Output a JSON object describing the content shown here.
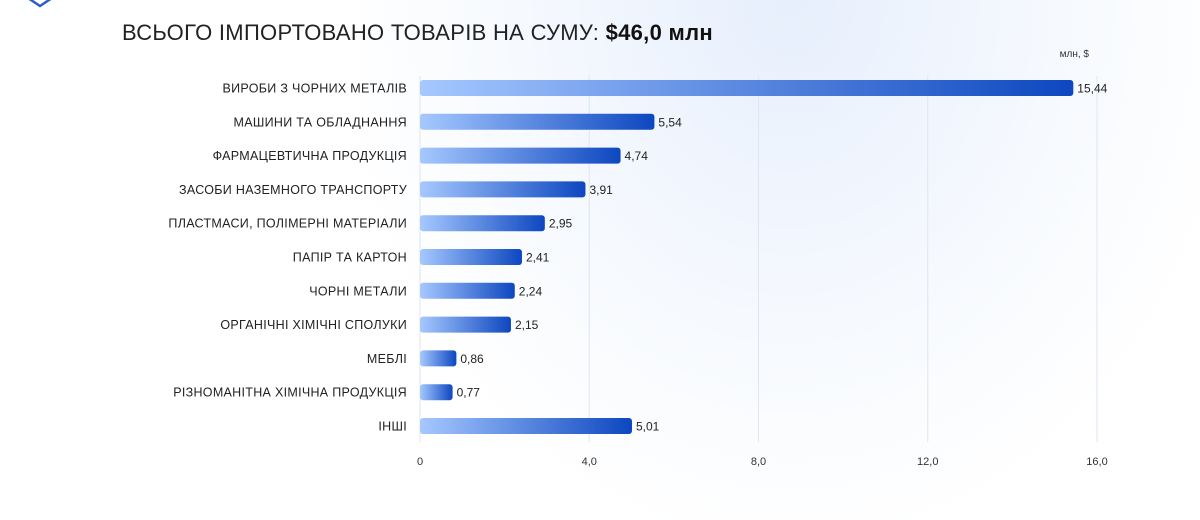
{
  "header": {
    "title_prefix": "ВСЬОГО ІМПОРТОВАНО ТОВАРІВ НА СУМУ:",
    "title_total": "$46,0 млн",
    "unit": "млн, $"
  },
  "colors": {
    "bar_start": "#a6c8ff",
    "bar_end": "#0d47c0",
    "grid": "#dfe6f1"
  },
  "chart_data": {
    "type": "bar",
    "orientation": "horizontal",
    "title": "ВСЬОГО ІМПОРТОВАНО ТОВАРІВ НА СУМУ: $46,0 млн",
    "unit": "млн, $",
    "categories": [
      "ВИРОБИ З ЧОРНИХ МЕТАЛІВ",
      "МАШИНИ ТА ОБЛАДНАННЯ",
      "ФАРМАЦЕВТИЧНА ПРОДУКЦІЯ",
      "ЗАСОБИ НАЗЕМНОГО ТРАНСПОРТУ",
      "ПЛАСТМАСИ, ПОЛІМЕРНІ МАТЕРІАЛИ",
      "ПАПІР ТА КАРТОН",
      "ЧОРНІ МЕТАЛИ",
      "ОРГАНІЧНІ ХІМІЧНІ СПОЛУКИ",
      "МЕБЛІ",
      "РІЗНОМАНІТНА ХІМІЧНА ПРОДУКЦІЯ",
      "ІНШІ"
    ],
    "values": [
      15.44,
      5.54,
      4.74,
      3.91,
      2.95,
      2.41,
      2.24,
      2.15,
      0.86,
      0.77,
      5.01
    ],
    "value_labels": [
      "15,44",
      "5,54",
      "4,74",
      "3,91",
      "2,95",
      "2,41",
      "2,24",
      "2,15",
      "0,86",
      "0,77",
      "5,01"
    ],
    "x_ticks": [
      0,
      4,
      8,
      12,
      16
    ],
    "x_tick_labels": [
      "0",
      "4,0",
      "8,0",
      "12,0",
      "16,0"
    ],
    "xlim": [
      0,
      16
    ],
    "grid": true
  }
}
